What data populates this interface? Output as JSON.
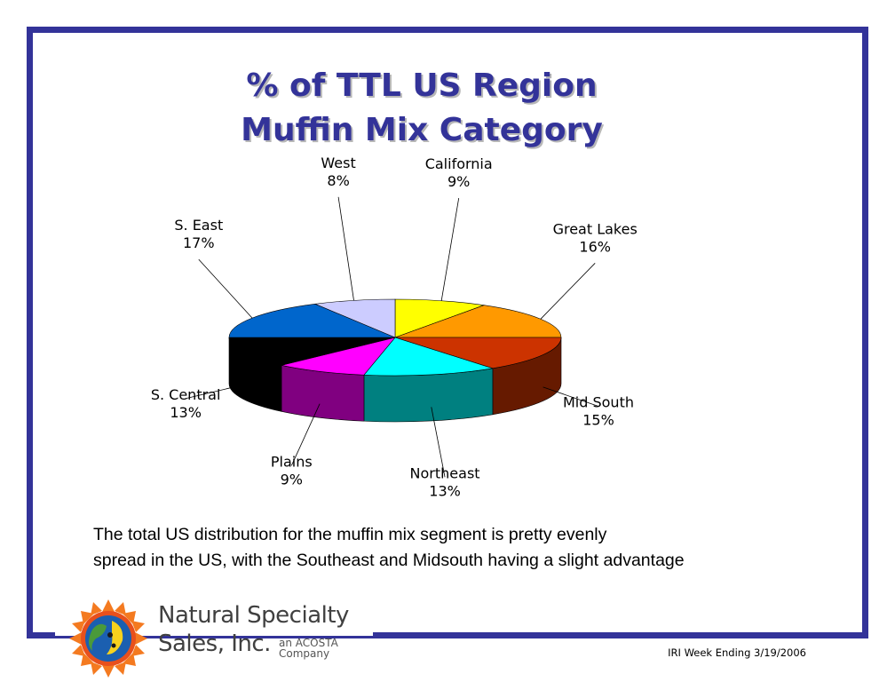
{
  "page": {
    "title_line1": "% of TTL US Region",
    "title_line2": "Muffin Mix Category",
    "caption_line1": "The total US distribution for the muffin mix segment is pretty evenly",
    "caption_line2": "spread in the US, with the Southeast and Midsouth having a slight advantage",
    "footer": "IRI Week Ending 3/19/2006"
  },
  "logo": {
    "name_line1": "Natural Specialty",
    "name_line2": "Sales, Inc.",
    "sub_line1": "an ACOSTA",
    "sub_line2": "Company",
    "icon": "sun-globe-logo-icon"
  },
  "chart_data": {
    "type": "pie",
    "style": "3d",
    "title": "% of TTL US Region Muffin Mix Category",
    "slices": [
      {
        "label": "California",
        "value": 9,
        "display": "9%",
        "color": "#FFFF00",
        "side_color": "#999900"
      },
      {
        "label": "Great Lakes",
        "value": 16,
        "display": "16%",
        "color": "#FF9900",
        "side_color": "#995c00"
      },
      {
        "label": "Mid South",
        "value": 15,
        "display": "15%",
        "color": "#CC3300",
        "side_color": "#661a00"
      },
      {
        "label": "Northeast",
        "value": 13,
        "display": "13%",
        "color": "#00FFFF",
        "side_color": "#008080"
      },
      {
        "label": "Plains",
        "value": 9,
        "display": "9%",
        "color": "#FF00FF",
        "side_color": "#800080"
      },
      {
        "label": "S. Central",
        "value": 13,
        "display": "13%",
        "color": "#000000",
        "side_color": "#000000"
      },
      {
        "label": "S. East",
        "value": 17,
        "display": "17%",
        "color": "#0066CC",
        "side_color": "#003366"
      },
      {
        "label": "West",
        "value": 8,
        "display": "8%",
        "color": "#CCCCFF",
        "side_color": "#8080a0"
      }
    ],
    "legend": "none"
  }
}
